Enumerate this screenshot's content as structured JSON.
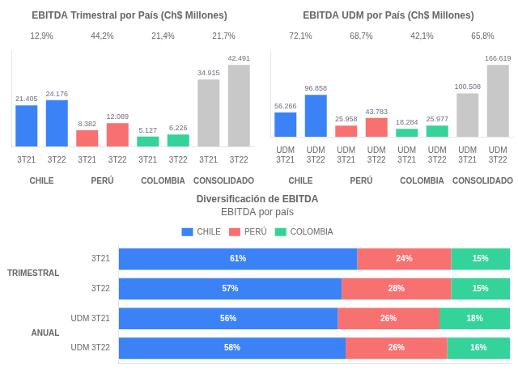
{
  "chart_data": [
    {
      "type": "bar",
      "title": "EBITDA Trimestral por País (Ch$ Millones)",
      "categories": [
        "3T21",
        "3T22",
        "3T21",
        "3T22",
        "3T21",
        "3T22",
        "3T21",
        "3T22"
      ],
      "groups": [
        "CHILE",
        "PERÚ",
        "COLOMBIA",
        "CONSOLIDADO"
      ],
      "annotations": [
        "12,9%",
        "44,2%",
        "21,4%",
        "21,7%"
      ],
      "values": [
        21405,
        24176,
        8382,
        12089,
        5127,
        6226,
        34915,
        42491
      ],
      "value_labels": [
        "21.405",
        "24.176",
        "8.382",
        "12.089",
        "5.127",
        "6.226",
        "34.915",
        "42.491"
      ],
      "colors": [
        "#3b82f6",
        "#3b82f6",
        "#f87171",
        "#f87171",
        "#34d399",
        "#34d399",
        "#c8c8c8",
        "#c8c8c8"
      ],
      "ylim": [
        0,
        50000
      ],
      "data_labels": true,
      "tick_labels": "x",
      "grid": false
    },
    {
      "type": "bar",
      "title": "EBITDA UDM por País (Ch$ Millones)",
      "categories": [
        "UDM\n3T21",
        "UDM\n3T22",
        "UDM\n3T21",
        "UDM\n3T22",
        "UDM\n3T21",
        "UDM\n3T22",
        "UDM\n3T21",
        "UDM\n3T22"
      ],
      "groups": [
        "CHILE",
        "PERÚ",
        "COLOMBIA",
        "CONSOLIDADO"
      ],
      "annotations": [
        "72,1%",
        "68,7%",
        "42,1%",
        "65,8%"
      ],
      "values": [
        56266,
        96858,
        25958,
        43783,
        18284,
        25977,
        100508,
        166619
      ],
      "value_labels": [
        "56.266",
        "96.858",
        "25.958",
        "43.783",
        "18.284",
        "25.977",
        "100.508",
        "166.619"
      ],
      "colors": [
        "#3b82f6",
        "#3b82f6",
        "#f87171",
        "#f87171",
        "#34d399",
        "#34d399",
        "#c8c8c8",
        "#c8c8c8"
      ],
      "ylim": [
        0,
        200000
      ],
      "data_labels": true,
      "tick_labels": "x",
      "grid": false
    },
    {
      "type": "bar",
      "title": "Diversificación de EBITDA",
      "subtitle": "EBITDA por país",
      "orientation": "horizontal",
      "stacked": true,
      "categories": [
        "3T21",
        "3T22",
        "UDM 3T21",
        "UDM 3T22"
      ],
      "groups": [
        "TRIMESTRAL",
        "ANUAL"
      ],
      "series": [
        {
          "name": "CHILE",
          "color": "#3b82f6",
          "values": [
            61,
            57,
            56,
            58
          ],
          "value_labels": [
            "61%",
            "57%",
            "56%",
            "58%"
          ]
        },
        {
          "name": "PERÚ",
          "color": "#f87171",
          "values": [
            24,
            28,
            26,
            26
          ],
          "value_labels": [
            "24%",
            "28%",
            "26%",
            "26%"
          ]
        },
        {
          "name": "COLOMBIA",
          "color": "#34d399",
          "values": [
            15,
            15,
            18,
            16
          ],
          "value_labels": [
            "15%",
            "15%",
            "18%",
            "16%"
          ]
        }
      ],
      "xlim": [
        0,
        100
      ],
      "data_labels": true,
      "tick_labels": "y",
      "legend": "top",
      "grid": false
    }
  ]
}
